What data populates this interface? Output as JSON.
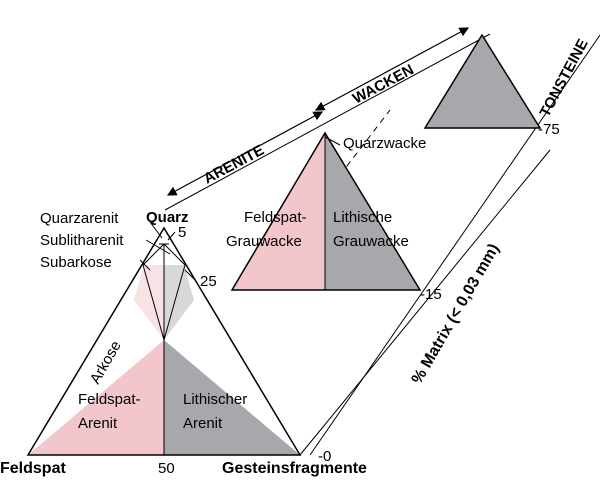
{
  "colors": {
    "pink": "#f2c6cb",
    "light_pink": "#f7e2e4",
    "grey": "#a7a8ac",
    "light_grey": "#d7d9d8",
    "stroke": "#000000"
  },
  "corners": {
    "feldspat": "Feldspat",
    "quarz": "Quarz",
    "gesteinsfragmente": "Gesteinsfragmente",
    "tick_50": "50"
  },
  "arenite_fields": {
    "quarzarenit": "Quarzarenit",
    "sublitharenit": "Sublitharenit",
    "subarkose": "Subarkose",
    "arkose": "Arkose",
    "feldspat_arenit_1": "Feldspat-",
    "feldspat_arenit_2": "Arenit",
    "lithischer_arenit_1": "Lithischer",
    "lithischer_arenit_2": "Arenit",
    "tick_5": "5",
    "tick_25": "25"
  },
  "wacke_fields": {
    "quarzwacke": "Quarzwacke",
    "feldspat_grauwacke_1": "Feldspat-",
    "feldspat_grauwacke_2": "Grauwacke",
    "lithische_grauwacke_1": "Lithische",
    "lithische_grauwacke_2": "Grauwacke"
  },
  "groups": {
    "arenite": "ARENITE",
    "wacken": "WACKEN",
    "tonsteine": "TONSTEINE"
  },
  "matrix_axis": {
    "label": "% Matrix (< 0,03 mm)",
    "ticks": [
      "0",
      "15",
      "75"
    ]
  }
}
